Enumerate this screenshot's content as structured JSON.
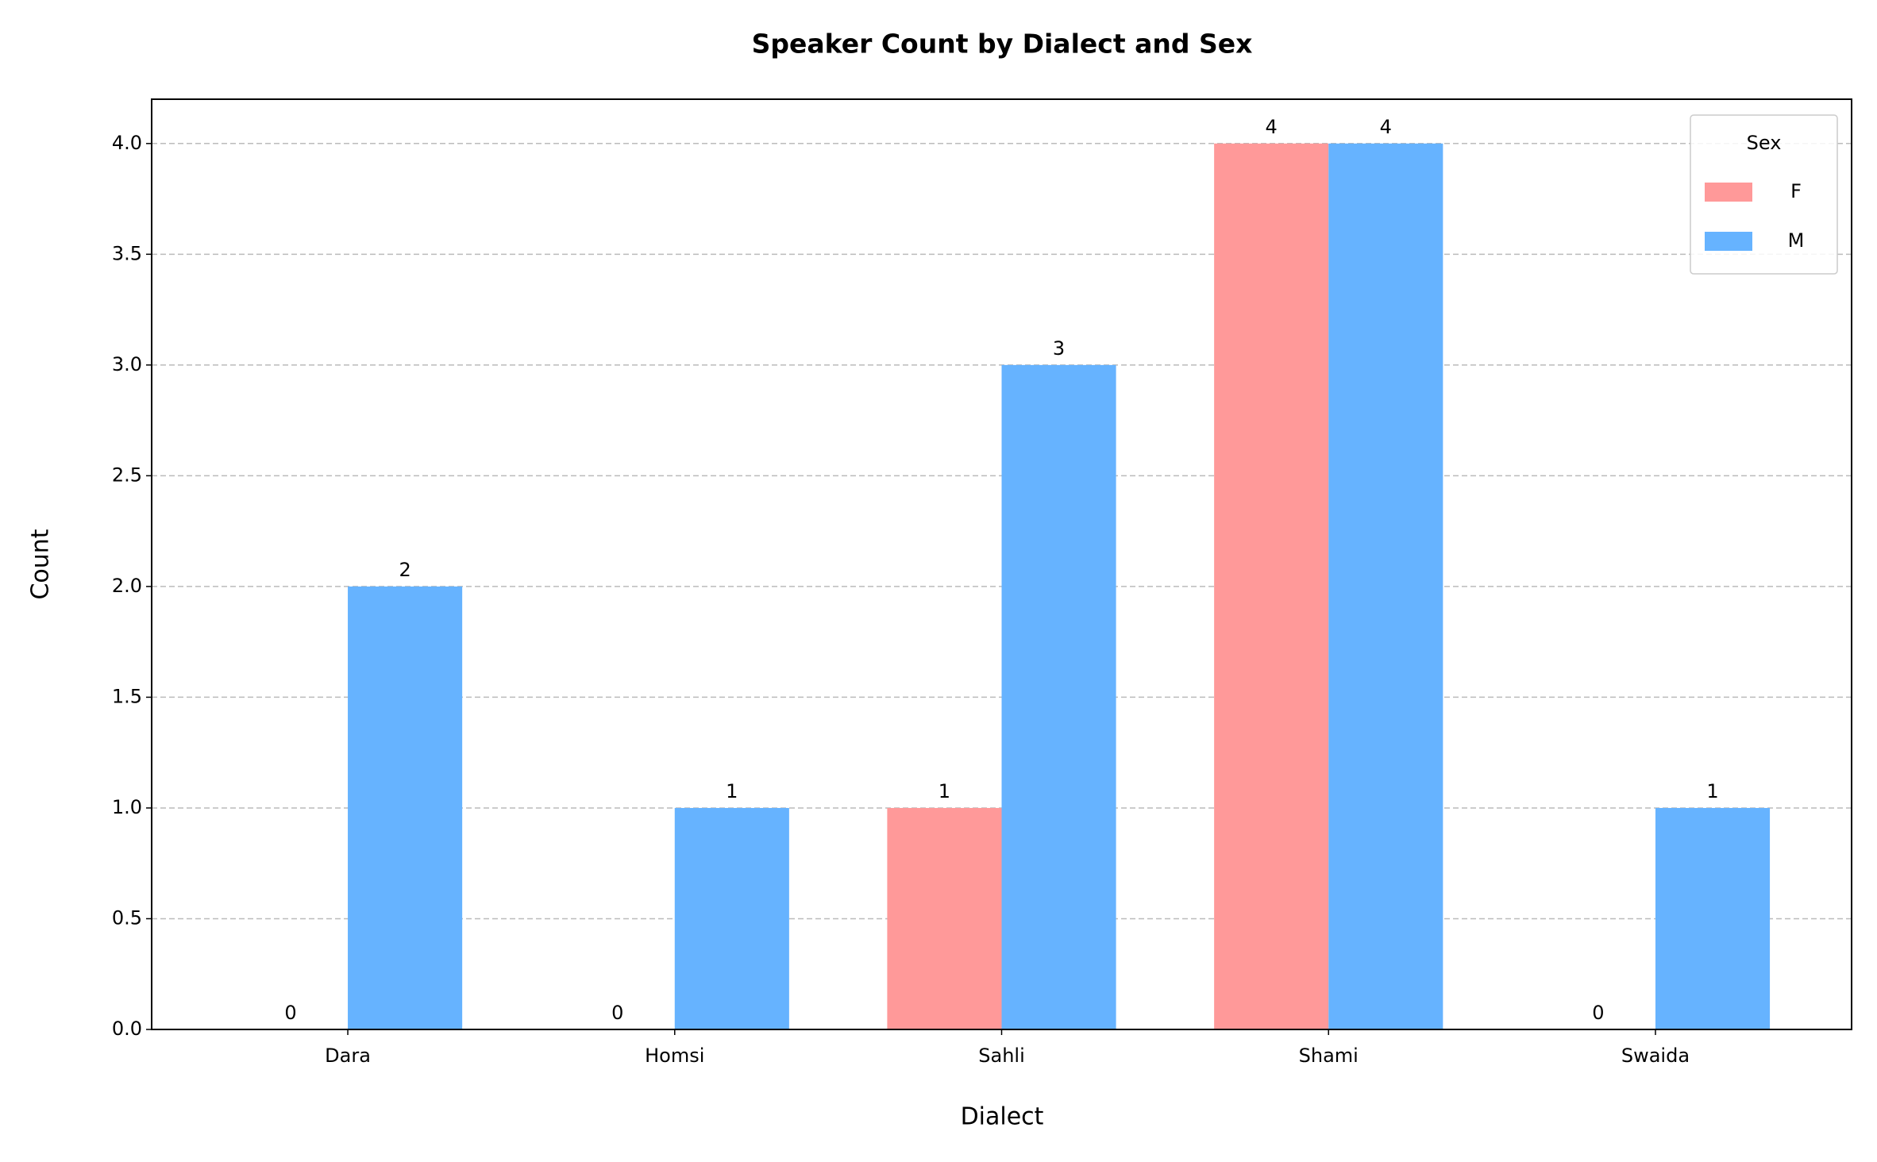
{
  "chart_data": {
    "type": "bar",
    "title": "Speaker Count by Dialect and Sex",
    "xlabel": "Dialect",
    "ylabel": "Count",
    "categories": [
      "Dara",
      "Homsi",
      "Sahli",
      "Shami",
      "Swaida"
    ],
    "series": [
      {
        "name": "F",
        "color": "#ff9999",
        "values": [
          0,
          0,
          1,
          4,
          0
        ]
      },
      {
        "name": "M",
        "color": "#66b3ff",
        "values": [
          2,
          1,
          3,
          4,
          1
        ]
      }
    ],
    "legend_title": "Sex",
    "legend": "upper right",
    "ylim": [
      0,
      4.2
    ],
    "yticks": [
      {
        "value": 0,
        "label": "0.0"
      },
      {
        "value": 0.5,
        "label": "0.5"
      },
      {
        "value": 1,
        "label": "1.0"
      },
      {
        "value": 1.5,
        "label": "1.5"
      },
      {
        "value": 2,
        "label": "2.0"
      },
      {
        "value": 2.5,
        "label": "2.5"
      },
      {
        "value": 3,
        "label": "3.0"
      },
      {
        "value": 3.5,
        "label": "3.5"
      },
      {
        "value": 4,
        "label": "4.0"
      }
    ],
    "grid": true
  }
}
